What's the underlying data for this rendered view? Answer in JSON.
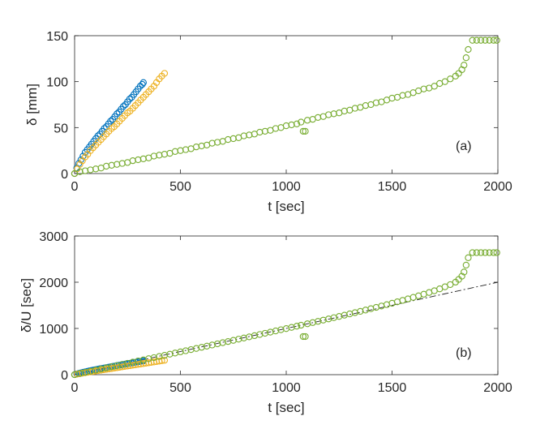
{
  "chart_data": [
    {
      "id": "panel-a",
      "type": "scatter",
      "annotation": "(a)",
      "xlabel": "t [sec]",
      "ylabel": "δ [mm]",
      "xlim": [
        0,
        2000
      ],
      "ylim": [
        0,
        150
      ],
      "xticks": [
        0,
        500,
        1000,
        1500,
        2000
      ],
      "yticks": [
        0,
        50,
        100,
        150
      ],
      "grid": false,
      "series": [
        {
          "name": "series-1",
          "color": "#0072BD",
          "x": [
            0,
            10,
            20,
            30,
            40,
            50,
            60,
            70,
            80,
            90,
            100,
            110,
            120,
            130,
            140,
            150,
            160,
            170,
            180,
            190,
            200,
            210,
            220,
            230,
            240,
            250,
            260,
            270,
            280,
            290,
            300,
            310,
            320,
            325
          ],
          "y": [
            0,
            6,
            11,
            15,
            19,
            23,
            26,
            29,
            32,
            35,
            38,
            41,
            43,
            46,
            49,
            51,
            54,
            57,
            59,
            62,
            65,
            67,
            70,
            73,
            75,
            78,
            81,
            83,
            86,
            89,
            92,
            95,
            97,
            99
          ]
        },
        {
          "name": "series-2",
          "color": "#EDB120",
          "x": [
            0,
            12,
            25,
            37,
            50,
            62,
            75,
            87,
            100,
            112,
            125,
            137,
            150,
            162,
            175,
            187,
            200,
            212,
            225,
            237,
            250,
            262,
            275,
            287,
            300,
            312,
            325,
            337,
            350,
            362,
            375,
            387,
            400,
            412,
            425
          ],
          "y": [
            0,
            5,
            10,
            14,
            18,
            21,
            25,
            28,
            31,
            34,
            37,
            40,
            43,
            46,
            49,
            51,
            54,
            57,
            60,
            63,
            66,
            68,
            71,
            74,
            77,
            80,
            83,
            86,
            89,
            92,
            95,
            99,
            103,
            106,
            109
          ]
        },
        {
          "name": "series-3",
          "color": "#77AC30",
          "x": [
            0,
            25,
            50,
            75,
            100,
            125,
            150,
            175,
            200,
            225,
            250,
            275,
            300,
            325,
            350,
            375,
            400,
            425,
            450,
            475,
            500,
            525,
            550,
            575,
            600,
            625,
            650,
            675,
            700,
            725,
            750,
            775,
            800,
            825,
            850,
            875,
            900,
            925,
            950,
            975,
            1000,
            1025,
            1050,
            1070,
            1080,
            1090,
            1100,
            1125,
            1150,
            1175,
            1200,
            1225,
            1250,
            1275,
            1300,
            1325,
            1350,
            1375,
            1400,
            1425,
            1450,
            1475,
            1500,
            1525,
            1550,
            1575,
            1600,
            1625,
            1650,
            1675,
            1700,
            1725,
            1750,
            1775,
            1800,
            1815,
            1830,
            1840,
            1850,
            1860,
            1880,
            1900,
            1920,
            1940,
            1960,
            1980,
            1995
          ],
          "y": [
            0,
            2,
            3,
            4,
            5,
            6,
            8,
            9,
            10,
            11,
            12,
            14,
            15,
            16,
            17,
            19,
            20,
            21,
            22,
            24,
            25,
            26,
            27,
            29,
            30,
            31,
            33,
            34,
            35,
            37,
            38,
            39,
            41,
            42,
            43,
            45,
            46,
            47,
            49,
            50,
            52,
            53,
            54,
            56,
            46,
            46,
            58,
            59,
            61,
            62,
            64,
            65,
            66,
            68,
            69,
            71,
            72,
            74,
            75,
            77,
            78,
            80,
            82,
            83,
            85,
            86,
            88,
            90,
            92,
            93,
            95,
            98,
            100,
            103,
            106,
            109,
            113,
            118,
            126,
            135,
            145,
            145,
            145,
            145,
            145,
            145,
            145
          ]
        }
      ]
    },
    {
      "id": "panel-b",
      "type": "scatter",
      "annotation": "(b)",
      "xlabel": "t [sec]",
      "ylabel": "δ/U [sec]",
      "xlim": [
        0,
        2000
      ],
      "ylim": [
        0,
        3000
      ],
      "xticks": [
        0,
        500,
        1000,
        1500,
        2000
      ],
      "yticks": [
        0,
        1000,
        2000,
        3000
      ],
      "grid": false,
      "reference_line": {
        "style": "dash-dot",
        "color": "#222222",
        "x": [
          0,
          2000
        ],
        "y": [
          0,
          2000
        ]
      },
      "series": [
        {
          "name": "series-1",
          "color": "#0072BD",
          "x": [
            0,
            10,
            20,
            30,
            40,
            50,
            60,
            70,
            80,
            90,
            100,
            110,
            120,
            130,
            140,
            150,
            160,
            170,
            180,
            190,
            200,
            210,
            220,
            230,
            240,
            250,
            260,
            270,
            280,
            290,
            300,
            310,
            320,
            325
          ],
          "y": [
            0,
            15,
            28,
            40,
            52,
            62,
            72,
            82,
            91,
            101,
            110,
            119,
            128,
            136,
            145,
            154,
            162,
            171,
            179,
            187,
            196,
            204,
            212,
            220,
            229,
            237,
            245,
            253,
            261,
            270,
            278,
            286,
            294,
            298
          ]
        },
        {
          "name": "series-2",
          "color": "#EDB120",
          "x": [
            0,
            12,
            25,
            37,
            50,
            62,
            75,
            87,
            100,
            112,
            125,
            137,
            150,
            162,
            175,
            187,
            200,
            212,
            225,
            237,
            250,
            262,
            275,
            287,
            300,
            312,
            325,
            337,
            350,
            362,
            375,
            387,
            400,
            412,
            425
          ],
          "y": [
            0,
            12,
            22,
            32,
            42,
            51,
            60,
            70,
            79,
            88,
            97,
            106,
            115,
            124,
            133,
            142,
            151,
            160,
            169,
            178,
            187,
            195,
            204,
            213,
            222,
            231,
            240,
            249,
            258,
            266,
            275,
            284,
            293,
            302,
            311
          ]
        },
        {
          "name": "series-3",
          "color": "#77AC30",
          "x": [
            0,
            25,
            50,
            75,
            100,
            125,
            150,
            175,
            200,
            225,
            250,
            275,
            300,
            325,
            350,
            375,
            400,
            425,
            450,
            475,
            500,
            525,
            550,
            575,
            600,
            625,
            650,
            675,
            700,
            725,
            750,
            775,
            800,
            825,
            850,
            875,
            900,
            925,
            950,
            975,
            1000,
            1025,
            1050,
            1070,
            1080,
            1090,
            1100,
            1125,
            1150,
            1175,
            1200,
            1225,
            1250,
            1275,
            1300,
            1325,
            1350,
            1375,
            1400,
            1425,
            1450,
            1475,
            1500,
            1525,
            1550,
            1575,
            1600,
            1625,
            1650,
            1675,
            1700,
            1725,
            1750,
            1775,
            1800,
            1815,
            1830,
            1840,
            1850,
            1860,
            1880,
            1900,
            1920,
            1940,
            1960,
            1980,
            1995
          ],
          "y": [
            0,
            25,
            50,
            74,
            99,
            124,
            148,
            173,
            197,
            222,
            246,
            271,
            295,
            320,
            345,
            369,
            394,
            418,
            443,
            468,
            493,
            517,
            542,
            567,
            592,
            617,
            642,
            667,
            692,
            717,
            742,
            768,
            793,
            818,
            844,
            869,
            895,
            920,
            946,
            972,
            997,
            1023,
            1049,
            1070,
            825,
            825,
            1101,
            1127,
            1153,
            1180,
            1206,
            1233,
            1260,
            1287,
            1315,
            1342,
            1370,
            1398,
            1427,
            1456,
            1485,
            1515,
            1545,
            1576,
            1607,
            1639,
            1672,
            1706,
            1741,
            1777,
            1815,
            1856,
            1900,
            1948,
            2002,
            2060,
            2130,
            2220,
            2370,
            2530,
            2640,
            2640,
            2640,
            2640,
            2640,
            2640,
            2640
          ]
        }
      ]
    }
  ]
}
